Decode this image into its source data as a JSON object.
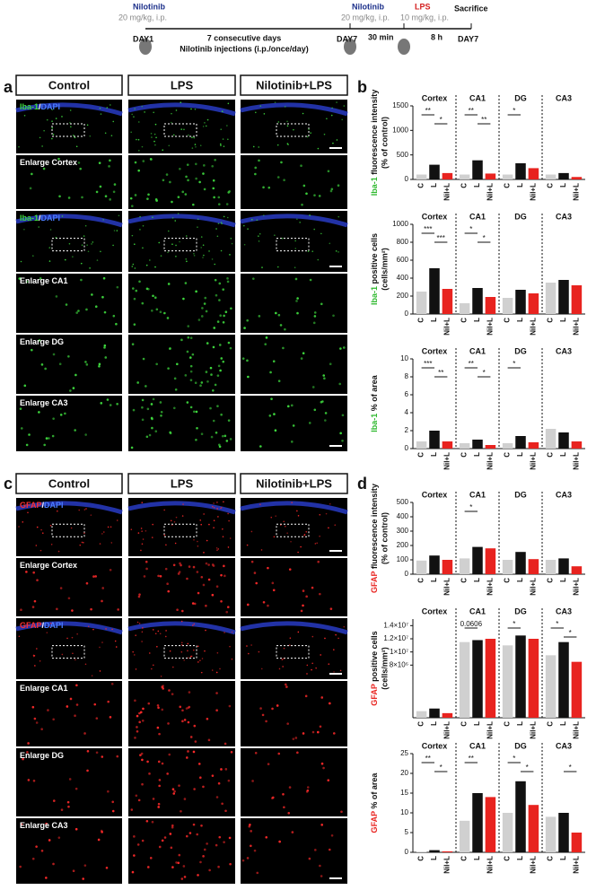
{
  "timeline": {
    "drug1": "Nilotinib",
    "dose1": "20 mg/kg, i.p.",
    "day_start": "DAY1",
    "period": "7 consecutive days",
    "period_note": "Nilotinib injections (i.p./once/day)",
    "day_mid": "DAY7",
    "drug2": "Nilotinib",
    "dose2": "20 mg/kg, i.p.",
    "drug3": "LPS",
    "dose3": "10 mg/kg, i.p.",
    "gap1": "30 min",
    "gap2": "8 h",
    "end": "Sacrifice",
    "day_end": "DAY7"
  },
  "panel_a": {
    "label": "a",
    "columns": [
      "Control",
      "LPS",
      "Nilotinib+LPS"
    ],
    "rows": [
      {
        "parts": [
          "Iba-1",
          "/",
          "DAPI"
        ],
        "colors": [
          "#3fdc3f",
          "#ffffff",
          "#4a7dff"
        ]
      },
      {
        "parts": [
          "Enlarge Cortex"
        ],
        "colors": [
          "#ffffff"
        ]
      },
      {
        "parts": [
          "Iba-1",
          "/",
          "DAPI"
        ],
        "colors": [
          "#3fdc3f",
          "#ffffff",
          "#4a7dff"
        ]
      },
      {
        "parts": [
          "Enlarge CA1"
        ],
        "colors": [
          "#ffffff"
        ]
      },
      {
        "parts": [
          "Enlarge DG"
        ],
        "colors": [
          "#ffffff"
        ]
      },
      {
        "parts": [
          "Enlarge CA3"
        ],
        "colors": [
          "#ffffff"
        ]
      }
    ]
  },
  "panel_b": {
    "label": "b"
  },
  "panel_c": {
    "label": "c",
    "columns": [
      "Control",
      "LPS",
      "Nilotinib+LPS"
    ],
    "rows": [
      {
        "parts": [
          "GFAP",
          "/",
          "DAPI"
        ],
        "colors": [
          "#ff3030",
          "#ffffff",
          "#4a7dff"
        ]
      },
      {
        "parts": [
          "Enlarge Cortex"
        ],
        "colors": [
          "#ffffff"
        ]
      },
      {
        "parts": [
          "GFAP",
          "/",
          "DAPI"
        ],
        "colors": [
          "#ff3030",
          "#ffffff",
          "#4a7dff"
        ]
      },
      {
        "parts": [
          "Enlarge CA1"
        ],
        "colors": [
          "#ffffff"
        ]
      },
      {
        "parts": [
          "Enlarge DG"
        ],
        "colors": [
          "#ffffff"
        ]
      },
      {
        "parts": [
          "Enlarge CA3"
        ],
        "colors": [
          "#ffffff"
        ]
      }
    ]
  },
  "panel_d": {
    "label": "d"
  },
  "chart_data": [
    {
      "type": "bar",
      "ylabel_marker": "Iba-1",
      "ylabel": " fluorescence intensity",
      "ylabel_unit": "(% of control)",
      "marker_color": "#2db82d",
      "groups": [
        {
          "name": "Cortex",
          "values": [
            100,
            300,
            130
          ]
        },
        {
          "name": "CA1",
          "values": [
            100,
            390,
            120
          ]
        },
        {
          "name": "DG",
          "values": [
            100,
            330,
            230
          ]
        },
        {
          "name": "CA3",
          "values": [
            100,
            130,
            50
          ]
        }
      ],
      "categories": [
        "C",
        "L",
        "Nil+L"
      ],
      "colors": [
        "#d0d0d0",
        "#111111",
        "#e8231f"
      ],
      "ylim": [
        0,
        1500
      ],
      "yticks": [
        0,
        500,
        1000,
        1500
      ],
      "significance": [
        {
          "group": 0,
          "pair": [
            0,
            1
          ],
          "label": "**"
        },
        {
          "group": 0,
          "pair": [
            1,
            2
          ],
          "label": "*"
        },
        {
          "group": 1,
          "pair": [
            0,
            1
          ],
          "label": "**"
        },
        {
          "group": 1,
          "pair": [
            1,
            2
          ],
          "label": "**"
        },
        {
          "group": 2,
          "pair": [
            0,
            1
          ],
          "label": "*"
        }
      ]
    },
    {
      "type": "bar",
      "ylabel_marker": "Iba-1",
      "ylabel": " positive cells",
      "ylabel_unit": "(cells/mm²)",
      "marker_color": "#2db82d",
      "groups": [
        {
          "name": "Cortex",
          "values": [
            250,
            510,
            280
          ]
        },
        {
          "name": "CA1",
          "values": [
            120,
            290,
            190
          ]
        },
        {
          "name": "DG",
          "values": [
            180,
            270,
            230
          ]
        },
        {
          "name": "CA3",
          "values": [
            350,
            380,
            320
          ]
        }
      ],
      "categories": [
        "C",
        "L",
        "Nil+L"
      ],
      "colors": [
        "#d0d0d0",
        "#111111",
        "#e8231f"
      ],
      "ylim": [
        0,
        1000
      ],
      "yticks": [
        0,
        200,
        400,
        600,
        800,
        1000
      ],
      "significance": [
        {
          "group": 0,
          "pair": [
            0,
            1
          ],
          "label": "***"
        },
        {
          "group": 0,
          "pair": [
            1,
            2
          ],
          "label": "***"
        },
        {
          "group": 1,
          "pair": [
            0,
            1
          ],
          "label": "*"
        },
        {
          "group": 1,
          "pair": [
            1,
            2
          ],
          "label": "*"
        }
      ]
    },
    {
      "type": "bar",
      "ylabel_marker": "Iba-1",
      "ylabel": " % of area",
      "marker_color": "#2db82d",
      "groups": [
        {
          "name": "Cortex",
          "values": [
            0.8,
            2.0,
            0.8
          ]
        },
        {
          "name": "CA1",
          "values": [
            0.6,
            1.0,
            0.4
          ]
        },
        {
          "name": "DG",
          "values": [
            0.6,
            1.4,
            0.7
          ]
        },
        {
          "name": "CA3",
          "values": [
            2.2,
            1.8,
            0.8
          ]
        }
      ],
      "categories": [
        "C",
        "L",
        "Nil+L"
      ],
      "colors": [
        "#d0d0d0",
        "#111111",
        "#e8231f"
      ],
      "ylim": [
        0,
        10
      ],
      "yticks": [
        0,
        2,
        4,
        6,
        8,
        10
      ],
      "significance": [
        {
          "group": 0,
          "pair": [
            0,
            1
          ],
          "label": "***"
        },
        {
          "group": 0,
          "pair": [
            1,
            2
          ],
          "label": "**"
        },
        {
          "group": 1,
          "pair": [
            0,
            1
          ],
          "label": "**"
        },
        {
          "group": 1,
          "pair": [
            1,
            2
          ],
          "label": "*"
        },
        {
          "group": 2,
          "pair": [
            0,
            1
          ],
          "label": "*"
        }
      ]
    },
    {
      "type": "bar",
      "ylabel_marker": "GFAP",
      "ylabel": " fluorescence intensity",
      "ylabel_unit": "(% of control)",
      "marker_color": "#e8231f",
      "groups": [
        {
          "name": "Cortex",
          "values": [
            95,
            130,
            100
          ]
        },
        {
          "name": "CA1",
          "values": [
            110,
            190,
            180
          ]
        },
        {
          "name": "DG",
          "values": [
            100,
            155,
            105
          ]
        },
        {
          "name": "CA3",
          "values": [
            100,
            110,
            55
          ]
        }
      ],
      "categories": [
        "C",
        "L",
        "Nil+L"
      ],
      "colors": [
        "#d0d0d0",
        "#111111",
        "#e8231f"
      ],
      "ylim": [
        0,
        500
      ],
      "yticks": [
        0,
        100,
        200,
        300,
        400,
        500
      ],
      "significance": [
        {
          "group": 1,
          "pair": [
            0,
            1
          ],
          "label": "*"
        }
      ]
    },
    {
      "type": "bar",
      "ylabel_marker": "GFAP",
      "ylabel": " positive cells",
      "ylabel_unit": "(cells/mm²)",
      "marker_color": "#e8231f",
      "groups": [
        {
          "name": "Cortex",
          "values": [
            1000000,
            1400000,
            700000
          ]
        },
        {
          "name": "CA1",
          "values": [
            11500000,
            11800000,
            12000000
          ]
        },
        {
          "name": "DG",
          "values": [
            11000000,
            12500000,
            12000000
          ]
        },
        {
          "name": "CA3",
          "values": [
            9500000,
            11500000,
            8500000
          ]
        }
      ],
      "categories": [
        "C",
        "L",
        "Nil+L"
      ],
      "colors": [
        "#d0d0d0",
        "#111111",
        "#e8231f"
      ],
      "ylim": [
        0,
        15000000
      ],
      "yticks": [
        {
          "value": 8000000,
          "label": "8×10⁶"
        },
        {
          "value": 10000000,
          "label": "1×10⁷"
        },
        {
          "value": 12000000,
          "label": "1.2×10⁷"
        },
        {
          "value": 14000000,
          "label": "1.4×10⁷"
        }
      ],
      "significance": [
        {
          "group": 1,
          "pair": [
            0,
            1
          ],
          "label": "0.0606"
        },
        {
          "group": 2,
          "pair": [
            0,
            1
          ],
          "label": "*"
        },
        {
          "group": 3,
          "pair": [
            0,
            1
          ],
          "label": "*"
        },
        {
          "group": 3,
          "pair": [
            1,
            2
          ],
          "label": "*"
        }
      ]
    },
    {
      "type": "bar",
      "ylabel_marker": "GFAP",
      "ylabel": " % of area",
      "marker_color": "#e8231f",
      "groups": [
        {
          "name": "Cortex",
          "values": [
            0.15,
            0.55,
            0.25
          ]
        },
        {
          "name": "CA1",
          "values": [
            8,
            15,
            14
          ]
        },
        {
          "name": "DG",
          "values": [
            10,
            18,
            12
          ]
        },
        {
          "name": "CA3",
          "values": [
            9,
            10,
            5
          ]
        }
      ],
      "categories": [
        "C",
        "L",
        "Nil+L"
      ],
      "colors": [
        "#d0d0d0",
        "#111111",
        "#e8231f"
      ],
      "ylim": [
        0,
        25
      ],
      "yticks": [
        0,
        5,
        10,
        15,
        20,
        25
      ],
      "significance": [
        {
          "group": 0,
          "pair": [
            0,
            1
          ],
          "label": "**"
        },
        {
          "group": 0,
          "pair": [
            1,
            2
          ],
          "label": "*"
        },
        {
          "group": 1,
          "pair": [
            0,
            1
          ],
          "label": "**"
        },
        {
          "group": 2,
          "pair": [
            0,
            1
          ],
          "label": "*"
        },
        {
          "group": 2,
          "pair": [
            1,
            2
          ],
          "label": "*"
        },
        {
          "group": 3,
          "pair": [
            1,
            2
          ],
          "label": "*"
        }
      ]
    }
  ]
}
